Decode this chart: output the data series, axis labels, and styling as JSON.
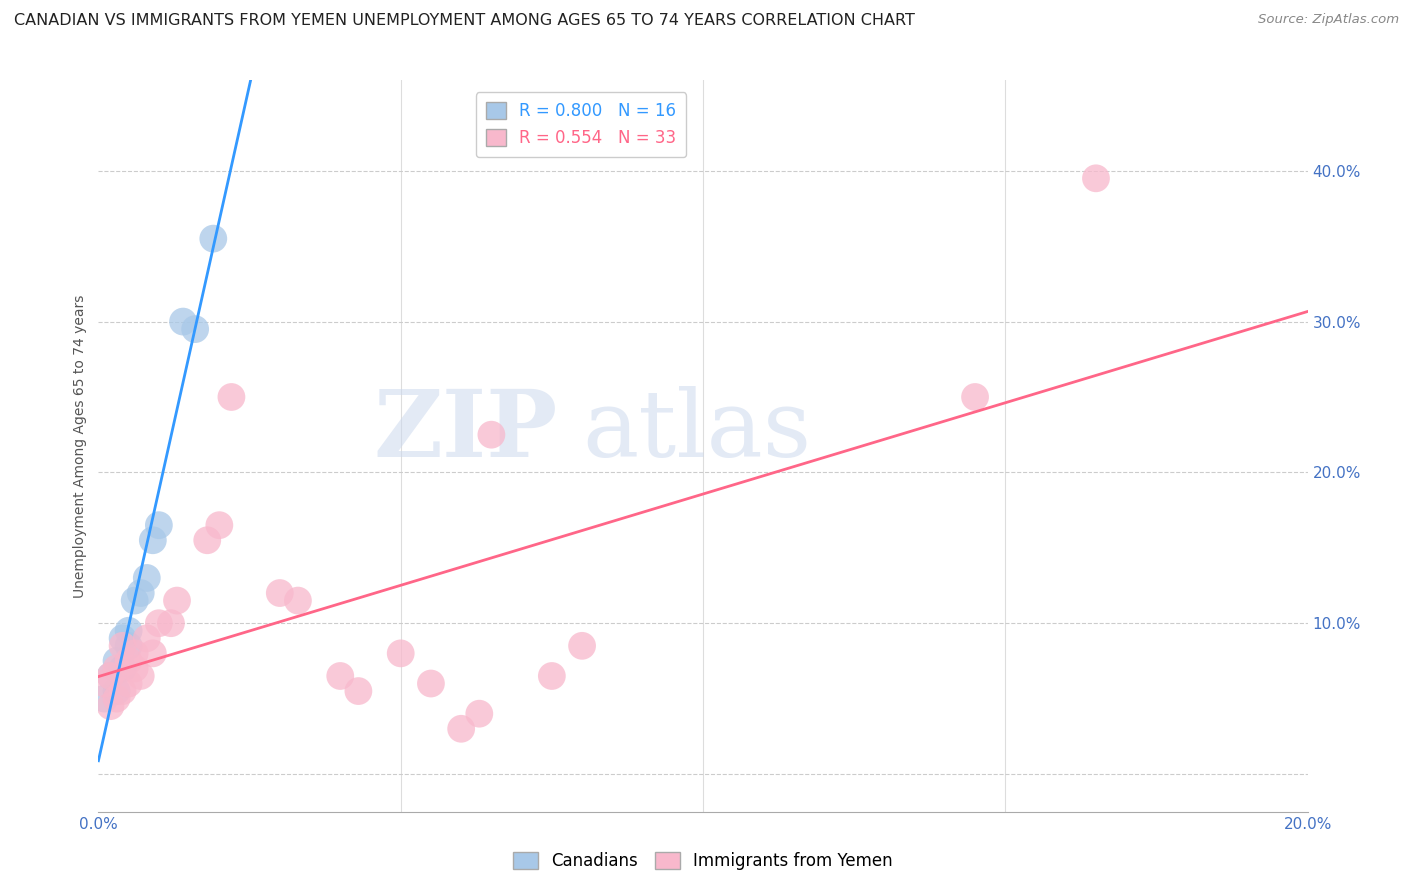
{
  "title": "CANADIAN VS IMMIGRANTS FROM YEMEN UNEMPLOYMENT AMONG AGES 65 TO 74 YEARS CORRELATION CHART",
  "source": "Source: ZipAtlas.com",
  "ylabel": "Unemployment Among Ages 65 to 74 years",
  "xlim": [
    0.0,
    0.2
  ],
  "ylim": [
    -0.025,
    0.46
  ],
  "xticks": [
    0.0,
    0.05,
    0.1,
    0.15,
    0.2
  ],
  "xtick_labels": [
    "0.0%",
    "",
    "",
    "",
    "20.0%"
  ],
  "yticks": [
    0.0,
    0.1,
    0.2,
    0.3,
    0.4
  ],
  "ytick_labels": [
    "",
    "10.0%",
    "20.0%",
    "30.0%",
    "40.0%"
  ],
  "canadians_x": [
    0.001,
    0.002,
    0.003,
    0.003,
    0.004,
    0.004,
    0.005,
    0.005,
    0.006,
    0.007,
    0.008,
    0.009,
    0.01,
    0.014,
    0.016,
    0.019
  ],
  "canadians_y": [
    0.05,
    0.065,
    0.055,
    0.075,
    0.07,
    0.09,
    0.085,
    0.095,
    0.115,
    0.12,
    0.13,
    0.155,
    0.165,
    0.3,
    0.295,
    0.355
  ],
  "yemeni_x": [
    0.001,
    0.002,
    0.002,
    0.003,
    0.003,
    0.004,
    0.004,
    0.005,
    0.005,
    0.006,
    0.006,
    0.007,
    0.008,
    0.009,
    0.01,
    0.012,
    0.013,
    0.018,
    0.02,
    0.022,
    0.03,
    0.033,
    0.04,
    0.043,
    0.05,
    0.055,
    0.06,
    0.063,
    0.065,
    0.075,
    0.08,
    0.145,
    0.165
  ],
  "yemeni_y": [
    0.06,
    0.065,
    0.045,
    0.05,
    0.07,
    0.055,
    0.085,
    0.06,
    0.075,
    0.07,
    0.08,
    0.065,
    0.09,
    0.08,
    0.1,
    0.1,
    0.115,
    0.155,
    0.165,
    0.25,
    0.12,
    0.115,
    0.065,
    0.055,
    0.08,
    0.06,
    0.03,
    0.04,
    0.225,
    0.065,
    0.085,
    0.25,
    0.395
  ],
  "canadian_color": "#a8c8e8",
  "yemeni_color": "#f8b8cc",
  "canadian_line_color": "#3399ff",
  "yemeni_line_color": "#ff6688",
  "canadian_R": 0.8,
  "canadian_N": 16,
  "yemeni_R": 0.554,
  "yemeni_N": 33,
  "marker_size": 400,
  "watermark_zip": "ZIP",
  "watermark_atlas": "atlas",
  "title_fontsize": 11.5,
  "axis_label_fontsize": 10,
  "tick_fontsize": 11,
  "legend_fontsize": 12,
  "source_fontsize": 9.5
}
